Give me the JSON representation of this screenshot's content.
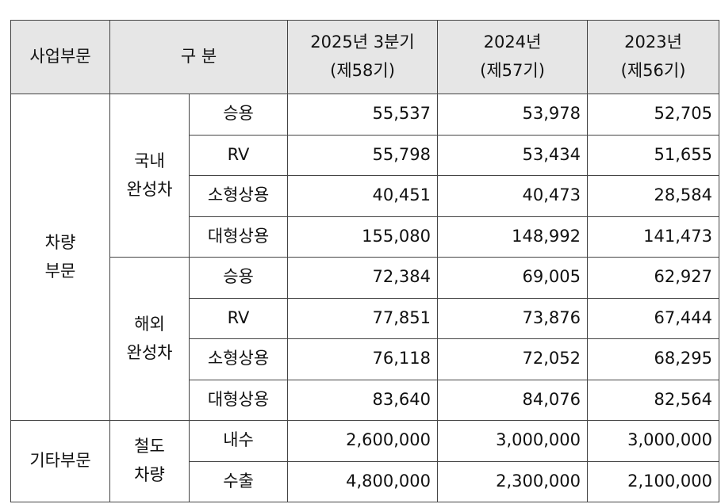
{
  "table": {
    "header": {
      "segment": "사업부문",
      "category": "구 분",
      "periods": [
        [
          "2025년 3분기",
          "(제58기)"
        ],
        [
          "2024년",
          "(제57기)"
        ],
        [
          "2023년",
          "(제56기)"
        ]
      ]
    },
    "sections": [
      {
        "name": [
          "차량",
          "부문"
        ],
        "groups": [
          {
            "name": [
              "국내",
              "완성차"
            ],
            "rows": [
              {
                "item": "승용",
                "values": [
                  "55,537",
                  "53,978",
                  "52,705"
                ]
              },
              {
                "item": "RV",
                "values": [
                  "55,798",
                  "53,434",
                  "51,655"
                ]
              },
              {
                "item": "소형상용",
                "values": [
                  "40,451",
                  "40,473",
                  "28,584"
                ]
              },
              {
                "item": "대형상용",
                "values": [
                  "155,080",
                  "148,992",
                  "141,473"
                ]
              }
            ]
          },
          {
            "name": [
              "해외",
              "완성차"
            ],
            "rows": [
              {
                "item": "승용",
                "values": [
                  "72,384",
                  "69,005",
                  "62,927"
                ]
              },
              {
                "item": "RV",
                "values": [
                  "77,851",
                  "73,876",
                  "67,444"
                ]
              },
              {
                "item": "소형상용",
                "values": [
                  "76,118",
                  "72,052",
                  "68,295"
                ]
              },
              {
                "item": "대형상용",
                "values": [
                  "83,640",
                  "84,076",
                  "82,564"
                ]
              }
            ]
          }
        ]
      },
      {
        "name": [
          "기타부문"
        ],
        "groups": [
          {
            "name": [
              "철도",
              "차량"
            ],
            "rows": [
              {
                "item": "내수",
                "values": [
                  "2,600,000",
                  "3,000,000",
                  "3,000,000"
                ]
              },
              {
                "item": "수출",
                "values": [
                  "4,800,000",
                  "2,300,000",
                  "2,100,000"
                ]
              }
            ]
          }
        ]
      }
    ]
  }
}
